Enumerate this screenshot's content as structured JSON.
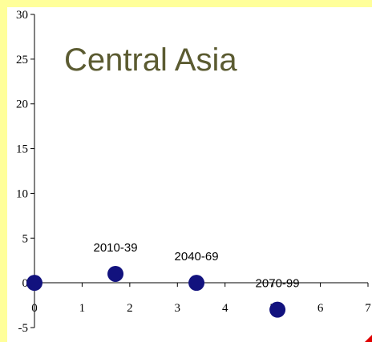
{
  "chart_data": {
    "type": "scatter",
    "title": "Central Asia",
    "xlabel": "",
    "ylabel": "",
    "xlim": [
      0,
      7
    ],
    "ylim": [
      -5,
      30
    ],
    "x_ticks": [
      "0",
      "1",
      "2",
      "3",
      "4",
      "5",
      "6",
      "7"
    ],
    "y_ticks": [
      "30",
      "25",
      "20",
      "15",
      "10",
      "5",
      "0",
      "-5"
    ],
    "grid": false,
    "points": [
      {
        "x": 0.0,
        "y": 0.0,
        "label": ""
      },
      {
        "x": 1.7,
        "y": 1.0,
        "label": "2010-39"
      },
      {
        "x": 3.4,
        "y": 0.0,
        "label": "2040-69"
      },
      {
        "x": 5.1,
        "y": -3.0,
        "label": "2070-99"
      }
    ]
  },
  "colors": {
    "marker": "#12127e",
    "title": "#5b5b31",
    "stripe": "#ffff9a",
    "corner_mark": "#e00000"
  }
}
